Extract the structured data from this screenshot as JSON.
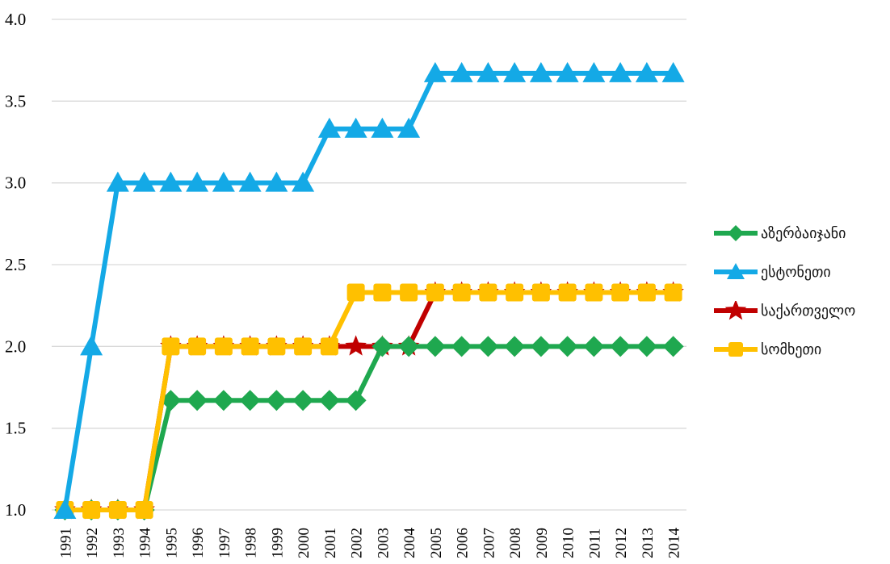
{
  "chart_data": {
    "type": "line",
    "title": "",
    "xlabel": "",
    "ylabel": "",
    "ylim": [
      1.0,
      4.0
    ],
    "yticks": [
      "1.0",
      "1.5",
      "2.0",
      "2.5",
      "3.0",
      "3.5",
      "4.0"
    ],
    "grid": true,
    "legend_position": "right",
    "categories": [
      "1991",
      "1992",
      "1993",
      "1994",
      "1995",
      "1996",
      "1997",
      "1998",
      "1999",
      "2000",
      "2001",
      "2002",
      "2003",
      "2004",
      "2005",
      "2006",
      "2007",
      "2008",
      "2009",
      "2010",
      "2011",
      "2012",
      "2013",
      "2014"
    ],
    "series": [
      {
        "name": "აზერბაიჯანი",
        "color": "#1fa84f",
        "marker": "diamond",
        "values": [
          1,
          1,
          1,
          1,
          1.67,
          1.67,
          1.67,
          1.67,
          1.67,
          1.67,
          1.67,
          1.67,
          2,
          2,
          2,
          2,
          2,
          2,
          2,
          2,
          2,
          2,
          2,
          2
        ]
      },
      {
        "name": "ესტონეთი",
        "color": "#14a9e6",
        "marker": "triangle",
        "values": [
          1,
          2,
          3,
          3,
          3,
          3,
          3,
          3,
          3,
          3,
          3.33,
          3.33,
          3.33,
          3.33,
          3.67,
          3.67,
          3.67,
          3.67,
          3.67,
          3.67,
          3.67,
          3.67,
          3.67,
          3.67
        ]
      },
      {
        "name": "საქართველო",
        "color": "#c00000",
        "marker": "star",
        "values": [
          1,
          1,
          1,
          1,
          2,
          2,
          2,
          2,
          2,
          2,
          2,
          2,
          2,
          2,
          2.33,
          2.33,
          2.33,
          2.33,
          2.33,
          2.33,
          2.33,
          2.33,
          2.33,
          2.33
        ]
      },
      {
        "name": "სომხეთი",
        "color": "#ffc000",
        "marker": "square",
        "values": [
          1,
          1,
          1,
          1,
          2,
          2,
          2,
          2,
          2,
          2,
          2,
          2.33,
          2.33,
          2.33,
          2.33,
          2.33,
          2.33,
          2.33,
          2.33,
          2.33,
          2.33,
          2.33,
          2.33,
          2.33
        ]
      }
    ]
  }
}
